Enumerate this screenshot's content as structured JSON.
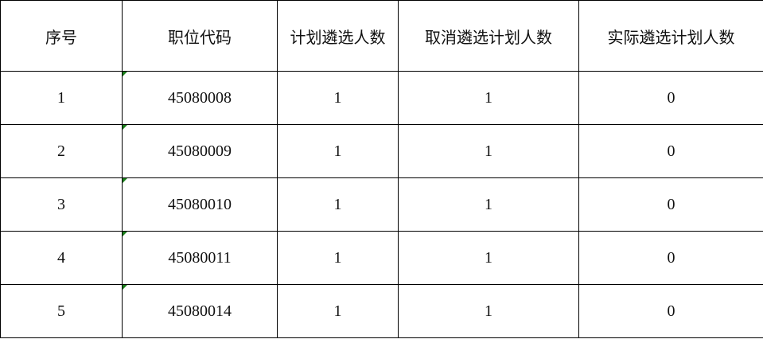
{
  "table": {
    "headers": [
      "序号",
      "职位代码",
      "计划遴选人数",
      "取消遴选计划人数",
      "实际遴选计划人数"
    ],
    "rows": [
      [
        "1",
        "45080008",
        "1",
        "1",
        "0"
      ],
      [
        "2",
        "45080009",
        "1",
        "1",
        "0"
      ],
      [
        "3",
        "45080010",
        "1",
        "1",
        "0"
      ],
      [
        "4",
        "45080011",
        "1",
        "1",
        "0"
      ],
      [
        "5",
        "45080014",
        "1",
        "1",
        "0"
      ]
    ]
  },
  "colors": {
    "text_indicator": "#1a7f1a"
  }
}
